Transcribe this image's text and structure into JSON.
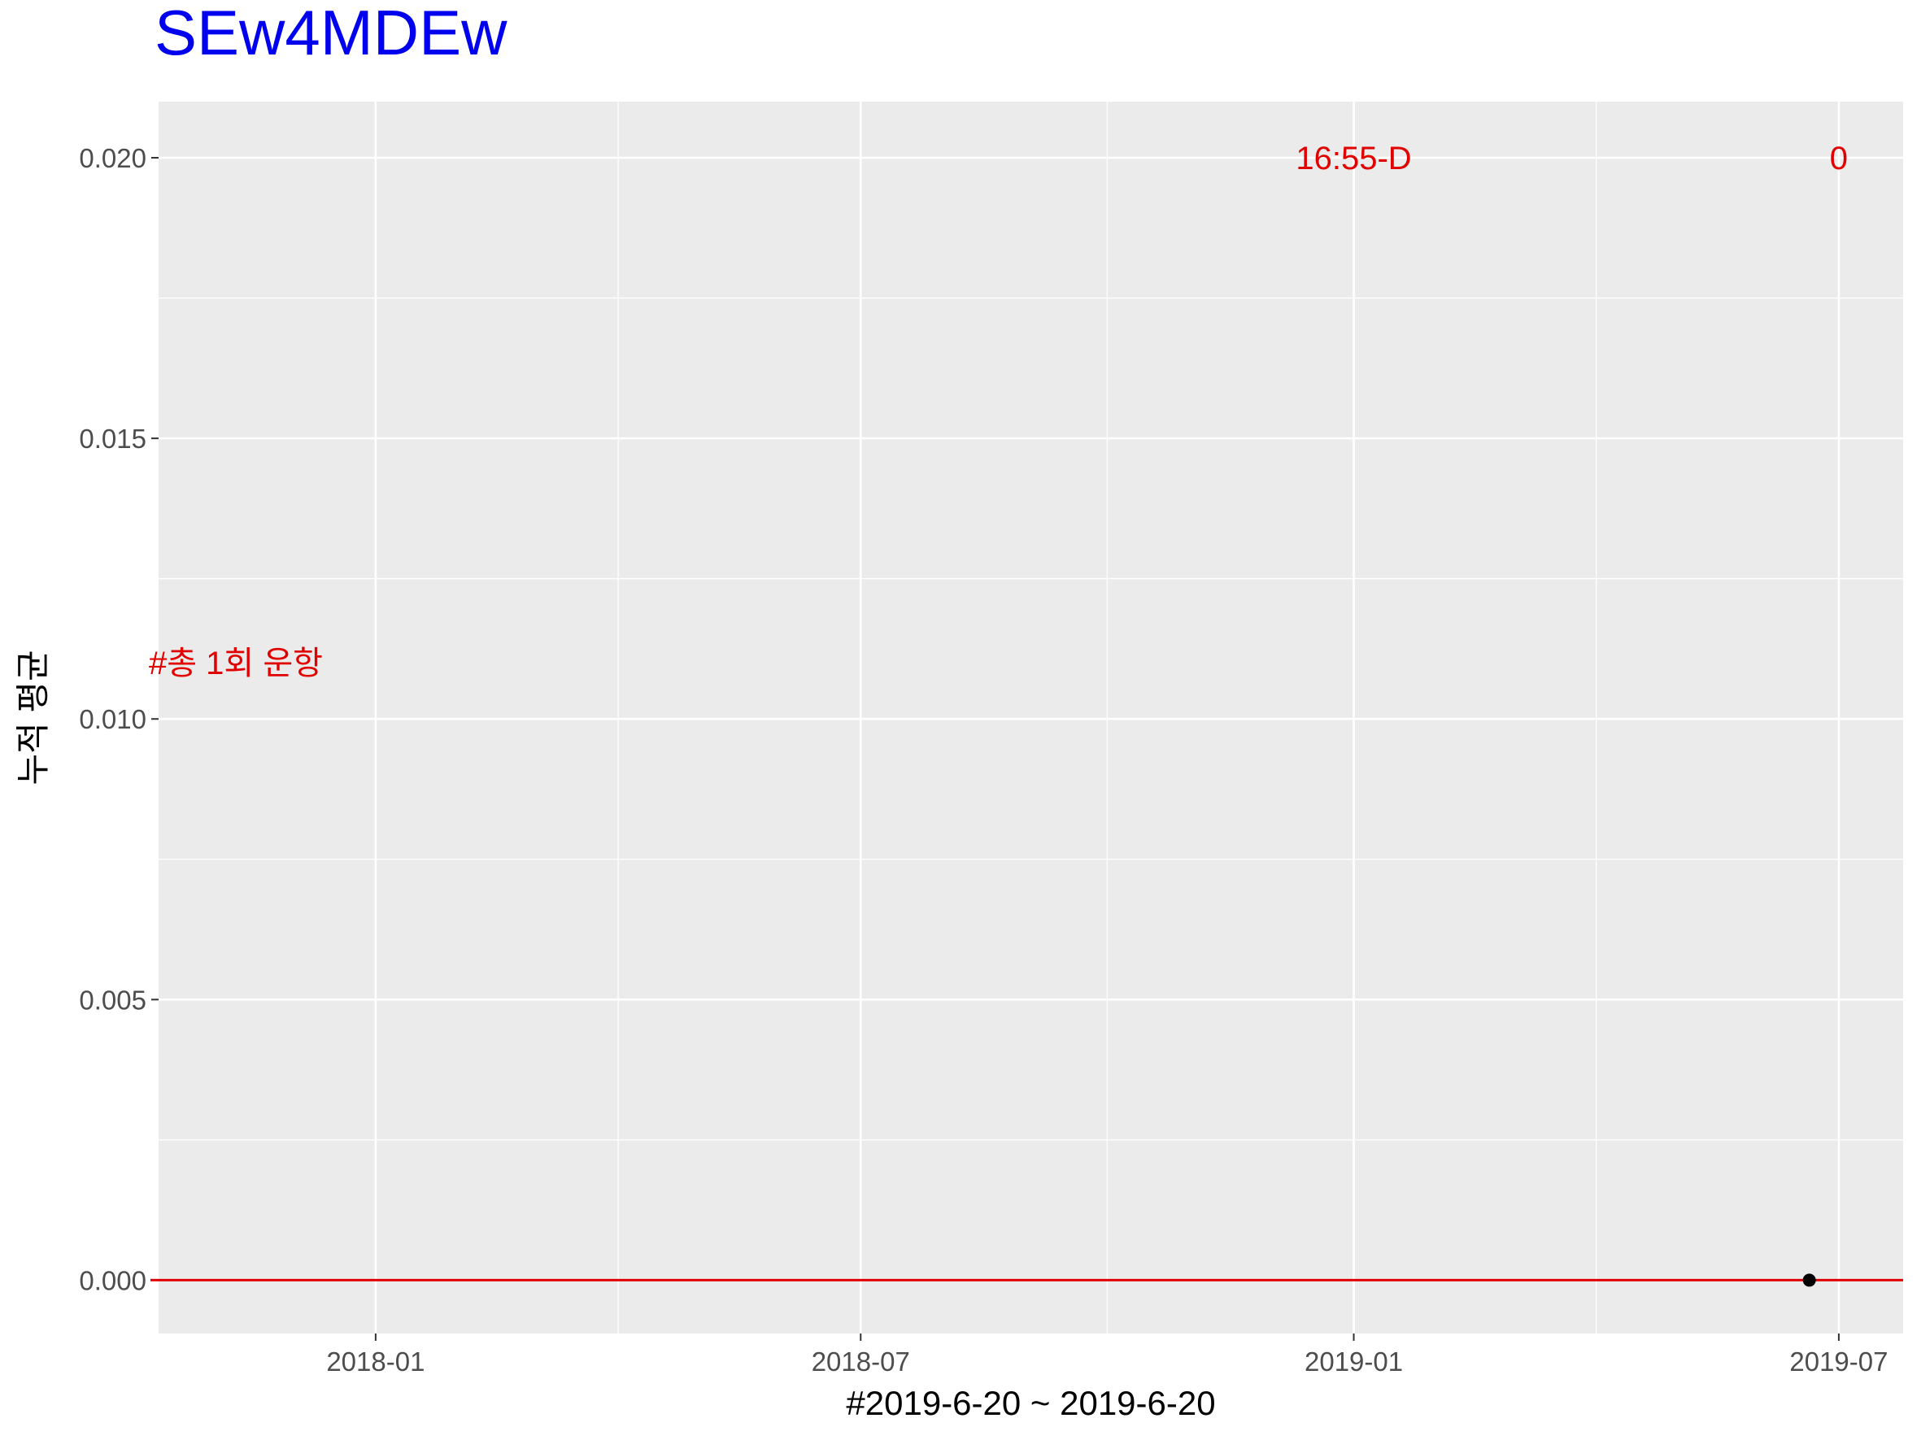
{
  "chart_data": {
    "type": "scatter",
    "title": "SEw4MDEw",
    "xlabel": "#2019-6-20 ~ 2019-6-20",
    "ylabel": "누적 평균",
    "x_ticks": [
      "2018-01",
      "2018-07",
      "2019-01",
      "2019-07"
    ],
    "y_ticks": [
      "0.000",
      "0.005",
      "0.010",
      "0.015",
      "0.020"
    ],
    "xlim": [
      "2017-10-12",
      "2019-07-25"
    ],
    "ylim": [
      -0.00095,
      0.021
    ],
    "grid": true,
    "points": [
      {
        "x": "2019-06-20",
        "y": 0
      }
    ],
    "hline": {
      "y": 0,
      "color": "#e00000"
    },
    "annotations": [
      {
        "text": "16:55-D",
        "x": "2019-01-01",
        "y": 0.02,
        "color": "#e00000"
      },
      {
        "text": "0",
        "x": "2019-07-01",
        "y": 0.02,
        "color": "#e00000"
      },
      {
        "text": "#총 1회 운항",
        "x": "2017-10-12",
        "y": 0.011,
        "color": "#e00000"
      }
    ],
    "colors": {
      "title": "#0000ee",
      "panel": "#ebebeb",
      "grid": "#ffffff",
      "annotation": "#e00000",
      "point": "#000000"
    }
  }
}
